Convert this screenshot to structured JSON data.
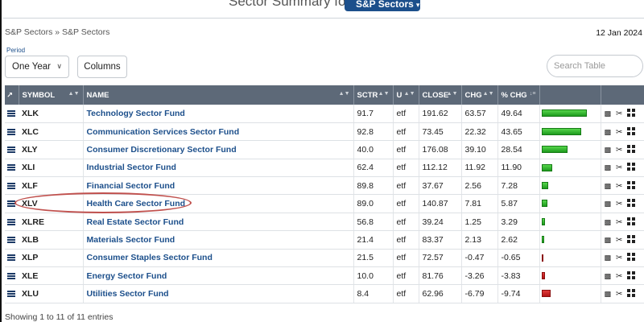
{
  "header": {
    "title": "Sector Summary for",
    "dropdown_label": "S&P Sectors"
  },
  "breadcrumb": {
    "parent": "S&P Sectors",
    "sep": "»",
    "current": "S&P Sectors"
  },
  "date": "12 Jan 2024",
  "period": {
    "label": "Period",
    "value": "One Year"
  },
  "columns_button": "Columns",
  "search": {
    "placeholder": "Search Table",
    "value": ""
  },
  "table": {
    "headers": [
      "SYMBOL",
      "NAME",
      "SCTR",
      "U",
      "CLOSE",
      "CHG",
      "% CHG"
    ],
    "rows": [
      {
        "symbol": "XLK",
        "name": "Technology Sector Fund",
        "sctr": "91.7",
        "u": "etf",
        "close": "191.62",
        "chg": "63.57",
        "pchg": "49.64"
      },
      {
        "symbol": "XLC",
        "name": "Communication Services Sector Fund",
        "sctr": "92.8",
        "u": "etf",
        "close": "73.45",
        "chg": "22.32",
        "pchg": "43.65"
      },
      {
        "symbol": "XLY",
        "name": "Consumer Discretionary Sector Fund",
        "sctr": "40.0",
        "u": "etf",
        "close": "176.08",
        "chg": "39.10",
        "pchg": "28.54"
      },
      {
        "symbol": "XLI",
        "name": "Industrial Sector Fund",
        "sctr": "62.4",
        "u": "etf",
        "close": "112.12",
        "chg": "11.92",
        "pchg": "11.90"
      },
      {
        "symbol": "XLF",
        "name": "Financial Sector Fund",
        "sctr": "89.8",
        "u": "etf",
        "close": "37.67",
        "chg": "2.56",
        "pchg": "7.28"
      },
      {
        "symbol": "XLV",
        "name": "Health Care Sector Fund",
        "sctr": "89.0",
        "u": "etf",
        "close": "140.87",
        "chg": "7.81",
        "pchg": "5.87"
      },
      {
        "symbol": "XLRE",
        "name": "Real Estate Sector Fund",
        "sctr": "56.8",
        "u": "etf",
        "close": "39.24",
        "chg": "1.25",
        "pchg": "3.29"
      },
      {
        "symbol": "XLB",
        "name": "Materials Sector Fund",
        "sctr": "21.4",
        "u": "etf",
        "close": "83.37",
        "chg": "2.13",
        "pchg": "2.62"
      },
      {
        "symbol": "XLP",
        "name": "Consumer Staples Sector Fund",
        "sctr": "21.5",
        "u": "etf",
        "close": "72.57",
        "chg": "-0.47",
        "pchg": "-0.65"
      },
      {
        "symbol": "XLE",
        "name": "Energy Sector Fund",
        "sctr": "10.0",
        "u": "etf",
        "close": "81.76",
        "chg": "-3.26",
        "pchg": "-3.83"
      },
      {
        "symbol": "XLU",
        "name": "Utilities Sector Fund",
        "sctr": "8.4",
        "u": "etf",
        "close": "62.96",
        "chg": "-6.79",
        "pchg": "-9.74"
      }
    ]
  },
  "footer": "Showing 1 to 11 of 11 entries",
  "colors": {
    "header_bg": "#5d6978",
    "link": "#1c4f8b",
    "positive": "#1d9a1d",
    "negative": "#b01414",
    "highlight_circle": "#c0504d"
  }
}
